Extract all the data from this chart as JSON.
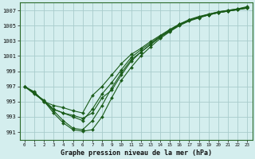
{
  "title": "Graphe pression niveau de la mer (hPa)",
  "bg_color": "#d4eeee",
  "grid_color": "#a8cccc",
  "line_color": "#1a5c1a",
  "marker_color": "#1a5c1a",
  "xlim": [
    -0.5,
    23.5
  ],
  "ylim": [
    990.0,
    1008.0
  ],
  "yticks": [
    991,
    993,
    995,
    997,
    999,
    1001,
    1003,
    1005,
    1007
  ],
  "xticks": [
    0,
    1,
    2,
    3,
    4,
    5,
    6,
    7,
    8,
    9,
    10,
    11,
    12,
    13,
    14,
    15,
    16,
    17,
    18,
    19,
    20,
    21,
    22,
    23
  ],
  "series": [
    [
      997.0,
      996.0,
      995.1,
      993.5,
      992.2,
      991.3,
      991.1,
      991.3,
      993.0,
      995.5,
      997.8,
      999.5,
      1001.0,
      1002.2,
      1003.3,
      1004.2,
      1005.0,
      1005.6,
      1006.0,
      1006.4,
      1006.7,
      1006.9,
      1007.1,
      1007.4
    ],
    [
      997.0,
      996.2,
      995.0,
      993.8,
      992.5,
      991.5,
      991.3,
      992.5,
      994.5,
      996.8,
      998.8,
      1000.5,
      1001.5,
      1002.5,
      1003.5,
      1004.3,
      1005.1,
      1005.7,
      1006.1,
      1006.4,
      1006.7,
      1006.9,
      1007.1,
      1007.3
    ],
    [
      997.0,
      996.1,
      995.0,
      994.0,
      993.5,
      993.0,
      992.5,
      994.0,
      996.0,
      997.5,
      999.2,
      1000.8,
      1001.8,
      1002.7,
      1003.6,
      1004.4,
      1005.2,
      1005.7,
      1006.1,
      1006.5,
      1006.8,
      1007.0,
      1007.2,
      1007.4
    ],
    [
      997.0,
      996.3,
      995.0,
      994.5,
      994.2,
      993.8,
      993.5,
      995.8,
      997.0,
      998.5,
      1000.0,
      1001.2,
      1002.0,
      1002.9,
      1003.7,
      1004.5,
      1005.2,
      1005.8,
      1006.2,
      1006.5,
      1006.8,
      1007.0,
      1007.2,
      1007.5
    ],
    [
      997.0,
      996.1,
      995.2,
      994.0,
      993.5,
      993.2,
      992.8,
      993.5,
      995.5,
      996.5,
      998.5,
      1000.3,
      1001.5,
      1002.5,
      1003.5,
      1004.3,
      1005.1,
      1005.7,
      1006.1,
      1006.4,
      1006.7,
      1006.9,
      1007.1,
      1007.3
    ]
  ]
}
